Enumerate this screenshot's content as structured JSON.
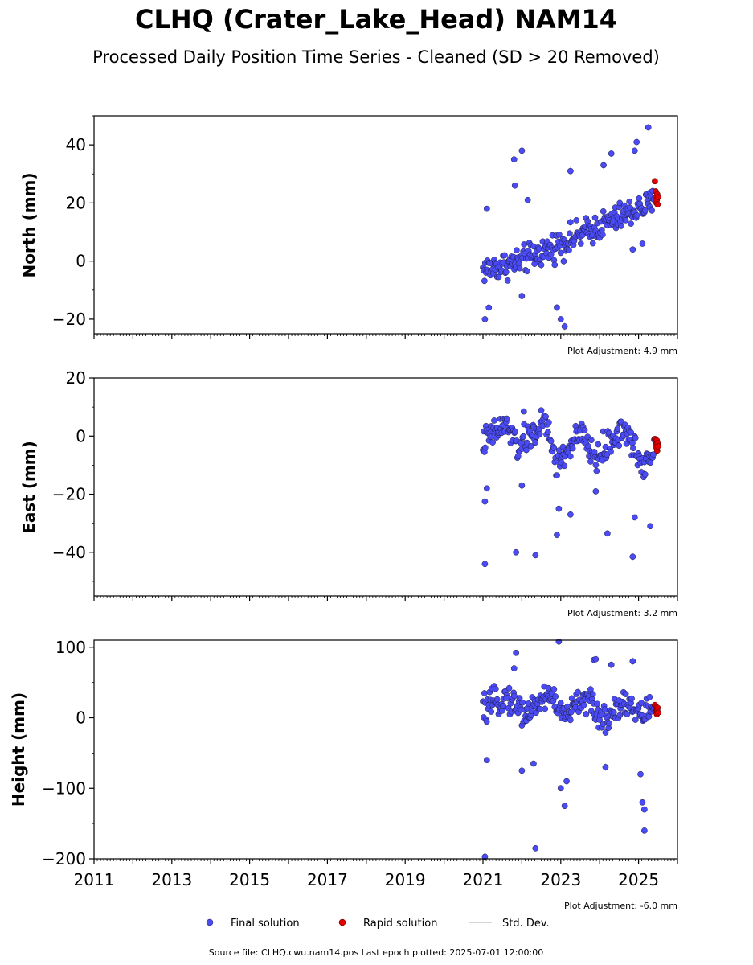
{
  "title": "CLHQ (Crater_Lake_Head) NAM14",
  "subtitle": "Processed Daily Position Time Series - Cleaned (SD > 20 Removed)",
  "legend": {
    "final_label": "Final solution",
    "rapid_label": "Rapid solution",
    "std_label": "Std. Dev."
  },
  "footer": "Source file: CLHQ.cwu.nam14.pos  Last epoch plotted: 2025-07-01 12:00:00",
  "colors": {
    "final": "#4b4bf5",
    "rapid": "#e00000",
    "errorbar": "#c8c8c8"
  },
  "chart_data": [
    {
      "type": "scatter",
      "ylabel": "North (mm)",
      "adjustment": "Plot Adjustment: 4.9 mm",
      "xlim": [
        2011,
        2026
      ],
      "ylim": [
        -25,
        50
      ],
      "yticks": [
        -20,
        0,
        20,
        40
      ],
      "yticklabels": [
        "−20",
        "0",
        "20",
        "40"
      ],
      "show_xticklabels": false,
      "final_trend": [
        [
          2021.0,
          -3
        ],
        [
          2022.0,
          0
        ],
        [
          2023.0,
          6
        ],
        [
          2024.0,
          12
        ],
        [
          2025.0,
          18
        ],
        [
          2025.4,
          20
        ]
      ],
      "final_noise": 3,
      "final_outliers": [
        [
          2021.05,
          -20
        ],
        [
          2021.1,
          18
        ],
        [
          2021.15,
          -16
        ],
        [
          2021.8,
          35
        ],
        [
          2021.82,
          26
        ],
        [
          2022.0,
          38
        ],
        [
          2022.0,
          -12
        ],
        [
          2022.15,
          21
        ],
        [
          2022.9,
          -16
        ],
        [
          2023.0,
          -20
        ],
        [
          2023.1,
          -22.5
        ],
        [
          2023.25,
          31
        ],
        [
          2024.1,
          33
        ],
        [
          2024.3,
          37
        ],
        [
          2024.9,
          38
        ],
        [
          2024.95,
          41
        ],
        [
          2025.25,
          46
        ],
        [
          2024.85,
          4
        ],
        [
          2025.1,
          6
        ]
      ],
      "rapid_points": [
        [
          2025.42,
          27.5
        ],
        [
          2025.44,
          24
        ],
        [
          2025.45,
          22
        ],
        [
          2025.46,
          20
        ],
        [
          2025.47,
          21
        ],
        [
          2025.48,
          23
        ],
        [
          2025.49,
          19.5
        ],
        [
          2025.5,
          22
        ]
      ]
    },
    {
      "type": "scatter",
      "ylabel": "East (mm)",
      "adjustment": "Plot Adjustment: 3.2 mm",
      "xlim": [
        2011,
        2026
      ],
      "ylim": [
        -55,
        20
      ],
      "yticks": [
        -40,
        -20,
        0,
        20
      ],
      "yticklabels": [
        "−40",
        "−20",
        "0",
        "20"
      ],
      "show_xticklabels": false,
      "final_trend": [
        [
          2021.0,
          -2
        ],
        [
          2021.6,
          4
        ],
        [
          2021.9,
          -4
        ],
        [
          2022.6,
          5
        ],
        [
          2022.9,
          -10
        ],
        [
          2023.5,
          1
        ],
        [
          2023.9,
          -8
        ],
        [
          2024.6,
          3
        ],
        [
          2025.1,
          -10
        ],
        [
          2025.4,
          -4
        ]
      ],
      "final_noise": 3,
      "final_outliers": [
        [
          2021.05,
          -44
        ],
        [
          2021.05,
          -22.5
        ],
        [
          2021.1,
          -18
        ],
        [
          2021.85,
          -40
        ],
        [
          2022.35,
          -41
        ],
        [
          2022.0,
          -17
        ],
        [
          2022.9,
          -34
        ],
        [
          2022.95,
          -25
        ],
        [
          2023.25,
          -27
        ],
        [
          2024.2,
          -33.5
        ],
        [
          2024.85,
          -41.5
        ],
        [
          2024.9,
          -28
        ],
        [
          2025.3,
          -31
        ],
        [
          2023.9,
          -19
        ],
        [
          2022.05,
          8.5
        ]
      ],
      "rapid_points": [
        [
          2025.42,
          -1
        ],
        [
          2025.44,
          -2
        ],
        [
          2025.45,
          -3
        ],
        [
          2025.46,
          -4
        ],
        [
          2025.47,
          -1.5
        ],
        [
          2025.48,
          -5
        ],
        [
          2025.49,
          -2.5
        ],
        [
          2025.5,
          -3.5
        ]
      ]
    },
    {
      "type": "scatter",
      "ylabel": "Height (mm)",
      "adjustment": "Plot Adjustment: -6.0 mm",
      "xlim": [
        2011,
        2026
      ],
      "ylim": [
        -200,
        110
      ],
      "yticks": [
        -200,
        -100,
        0,
        100
      ],
      "yticklabels": [
        "−200",
        "−100",
        "0",
        "100"
      ],
      "show_xticklabels": true,
      "xticks": [
        2011,
        2013,
        2015,
        2017,
        2019,
        2021,
        2023,
        2025
      ],
      "xticklabels": [
        "2011",
        "2013",
        "2015",
        "2017",
        "2019",
        "2021",
        "2023",
        "2025"
      ],
      "final_trend": [
        [
          2021.0,
          10
        ],
        [
          2021.6,
          30
        ],
        [
          2022.1,
          5
        ],
        [
          2022.7,
          35
        ],
        [
          2023.1,
          0
        ],
        [
          2023.6,
          30
        ],
        [
          2024.1,
          -5
        ],
        [
          2024.6,
          25
        ],
        [
          2025.0,
          5
        ],
        [
          2025.4,
          15
        ]
      ],
      "final_noise": 12,
      "final_outliers": [
        [
          2021.05,
          -197
        ],
        [
          2021.1,
          -60
        ],
        [
          2021.8,
          70
        ],
        [
          2021.85,
          92
        ],
        [
          2022.0,
          -75
        ],
        [
          2022.35,
          -185
        ],
        [
          2022.3,
          -65
        ],
        [
          2022.95,
          108
        ],
        [
          2023.0,
          -100
        ],
        [
          2023.1,
          -125
        ],
        [
          2023.15,
          -90
        ],
        [
          2023.85,
          82
        ],
        [
          2023.9,
          83
        ],
        [
          2024.3,
          75
        ],
        [
          2024.85,
          80
        ],
        [
          2025.15,
          -160
        ],
        [
          2025.15,
          -130
        ],
        [
          2025.1,
          -120
        ],
        [
          2025.05,
          -80
        ],
        [
          2024.15,
          -70
        ]
      ],
      "rapid_points": [
        [
          2025.42,
          18
        ],
        [
          2025.44,
          12
        ],
        [
          2025.45,
          8
        ],
        [
          2025.46,
          15
        ],
        [
          2025.47,
          5
        ],
        [
          2025.48,
          10
        ],
        [
          2025.49,
          14
        ],
        [
          2025.5,
          7
        ]
      ]
    }
  ]
}
